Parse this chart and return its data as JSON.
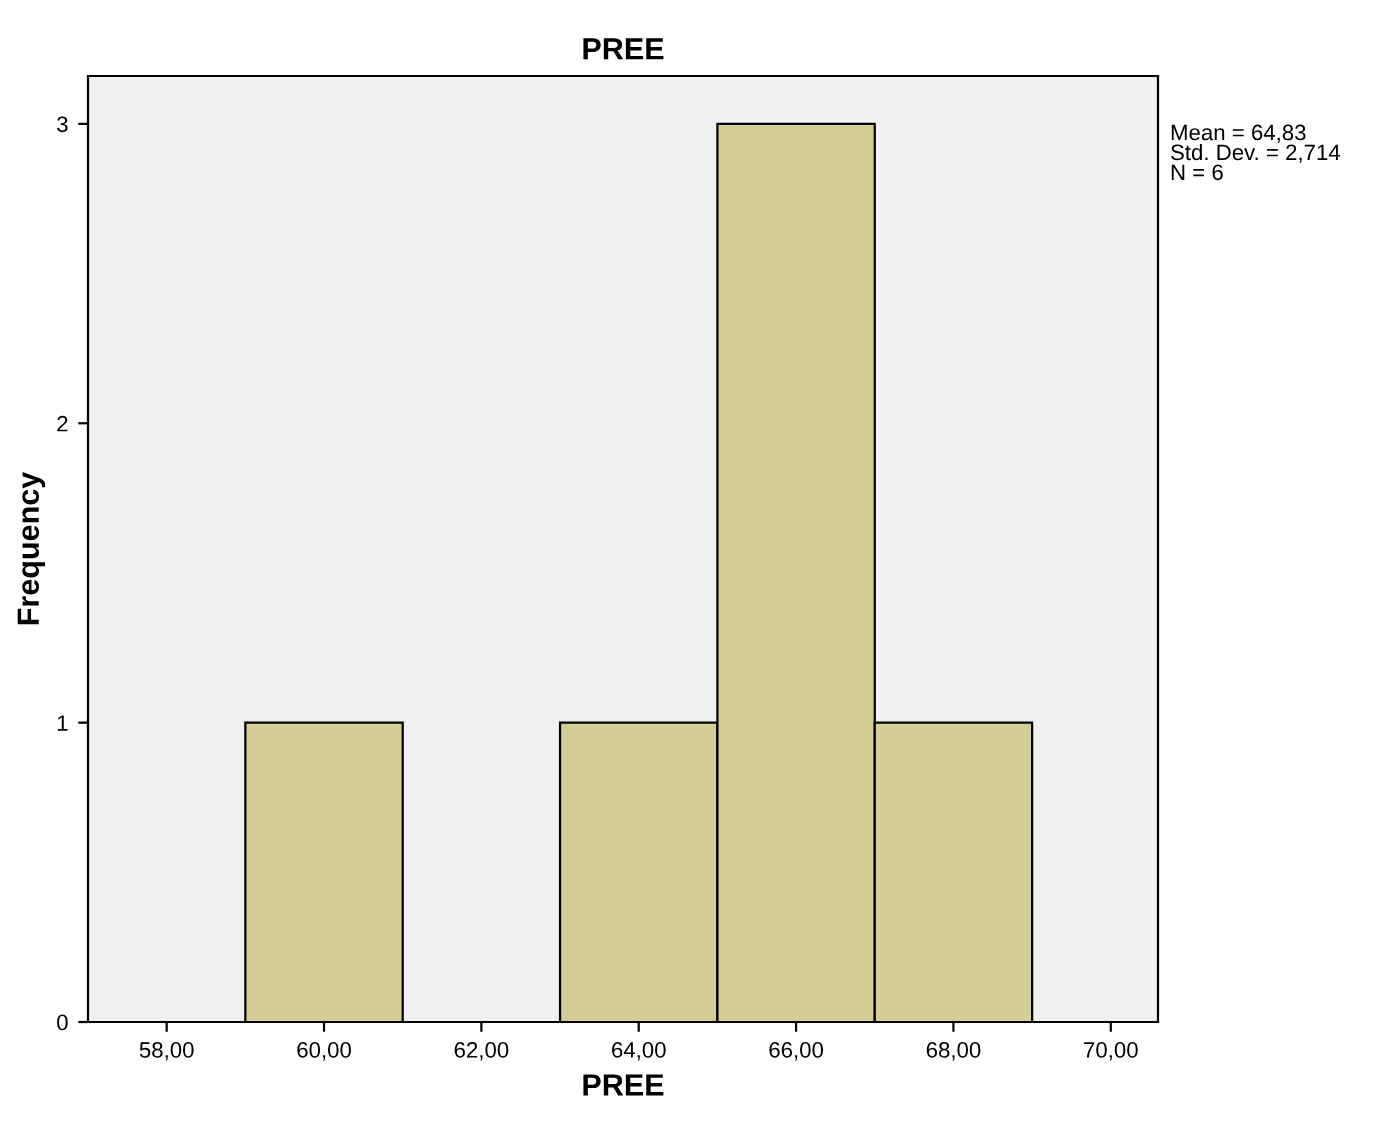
{
  "chart_data": {
    "type": "histogram",
    "title": "PREE",
    "xlabel": "PREE",
    "ylabel": "Frequency",
    "bins": [
      59,
      61,
      63,
      65,
      67,
      69
    ],
    "values": [
      1,
      0,
      1,
      3,
      1
    ],
    "color": "#d3ce98",
    "xlim": [
      57.0,
      70.6
    ],
    "ylim": [
      0,
      3.16
    ],
    "xticks": [
      {
        "value": 58,
        "label": "58,00"
      },
      {
        "value": 60,
        "label": "60,00"
      },
      {
        "value": 62,
        "label": "62,00"
      },
      {
        "value": 64,
        "label": "64,00"
      },
      {
        "value": 66,
        "label": "66,00"
      },
      {
        "value": 68,
        "label": "68,00"
      },
      {
        "value": 70,
        "label": "70,00"
      }
    ],
    "yticks": [
      0,
      1,
      2,
      3
    ],
    "annotations": [
      "Mean = 64,83\nStd. Dev. = 2,714\nN = 6"
    ],
    "grid": false
  }
}
